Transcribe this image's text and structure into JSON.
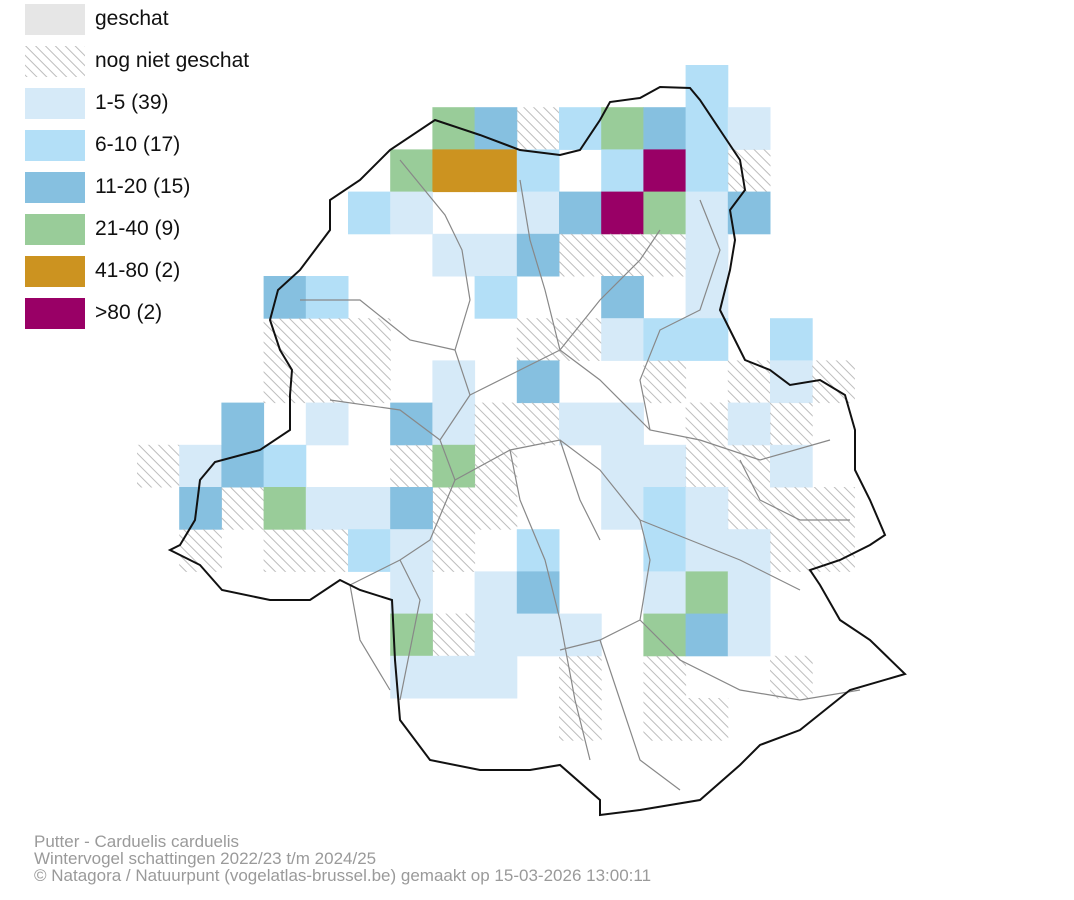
{
  "legend": {
    "items": [
      {
        "label": "geschat",
        "kind": "solid",
        "color": "#e6e6e6"
      },
      {
        "label": "nog niet geschat",
        "kind": "hatch",
        "color": "#bdbdbd"
      },
      {
        "label": "1-5 (39)",
        "kind": "solid",
        "color": "#d6eaf8"
      },
      {
        "label": "6-10 (17)",
        "kind": "solid",
        "color": "#b3dff7"
      },
      {
        "label": "11-20 (15)",
        "kind": "solid",
        "color": "#86c0e0"
      },
      {
        "label": "21-40 (9)",
        "kind": "solid",
        "color": "#99cc99"
      },
      {
        "label": "41-80 (2)",
        "kind": "solid",
        "color": "#cc9320"
      },
      {
        "label": ">80 (2)",
        "kind": "solid",
        "color": "#990066"
      }
    ]
  },
  "caption": {
    "line1": "Putter - Carduelis carduelis",
    "line2": "Wintervogel schattingen 2022/23 t/m 2024/25",
    "line3": "© Natagora / Natuurpunt (vogelatlas-brussel.be) gemaakt op 15-03-2026 13:00:11"
  },
  "colors": {
    "class_1": "#d6eaf8",
    "class_2": "#b3dff7",
    "class_3": "#86c0e0",
    "class_4": "#99cc99",
    "class_5": "#cc9320",
    "class_6": "#990066",
    "hatch": "#bdbdbd",
    "boundary": "#111111",
    "municipality": "#888888"
  }
}
